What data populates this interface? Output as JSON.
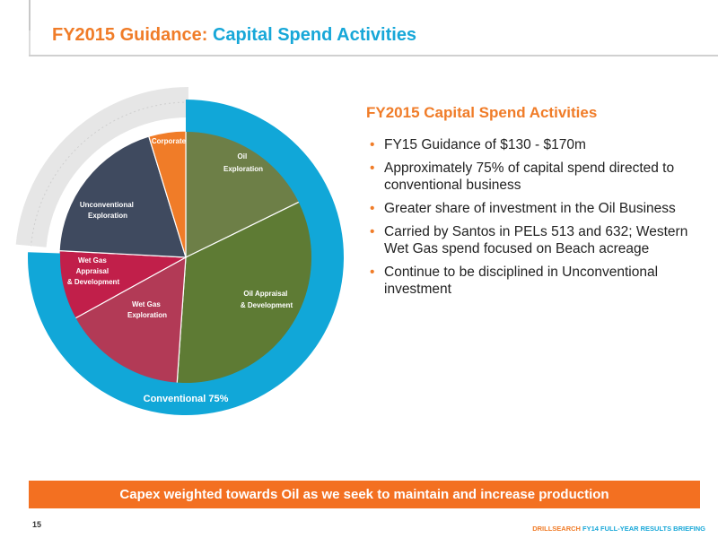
{
  "header": {
    "title_prefix": "FY2015 Guidance:",
    "title_highlight": "Capital Spend Activities"
  },
  "chart_data": {
    "type": "pie",
    "title": "",
    "slices": [
      {
        "label": "Oil Exploration",
        "label_lines": [
          "Oil",
          "Exploration"
        ],
        "color": "#6d7f47"
      },
      {
        "label": "Oil Appraisal & Development",
        "label_lines": [
          "Oil Appraisal",
          "& Development"
        ],
        "color": "#5e7b34"
      },
      {
        "label": "Wet Gas Exploration",
        "label_lines": [
          "Wet Gas",
          "Exploration"
        ],
        "color": "#b23a56"
      },
      {
        "label": "Wet Gas Appraisal & Development",
        "label_lines": [
          "Wet Gas",
          "Appraisal",
          "& Development"
        ],
        "color": "#c11f4a"
      },
      {
        "label": "Unconventional Exploration",
        "label_lines": [
          "Unconventional",
          "Exploration"
        ],
        "color": "#3f4a5f"
      },
      {
        "label": "Corporate",
        "label_lines": [
          "Corporate"
        ],
        "color": "#f07c28"
      }
    ],
    "outer_ring": {
      "label": "Conventional 75%",
      "value": 75,
      "color": "#11a7d8"
    }
  },
  "panel": {
    "subheading": "FY2015 Capital Spend Activities",
    "bullets": [
      "FY15 Guidance of $130 - $170m",
      "Approximately 75% of capital spend directed to conventional business",
      "Greater share of investment in the Oil Business",
      "Carried by Santos in PELs 513 and 632; Western Wet Gas spend focused on Beach acreage",
      "Continue to be disciplined in Unconventional investment"
    ]
  },
  "banner": {
    "text": "Capex weighted towards Oil as we seek to maintain and increase production"
  },
  "footer": {
    "page_number": "15",
    "brand": "DRILLSEARCH",
    "caption": "FY14 FULL-YEAR RESULTS BRIEFING"
  }
}
